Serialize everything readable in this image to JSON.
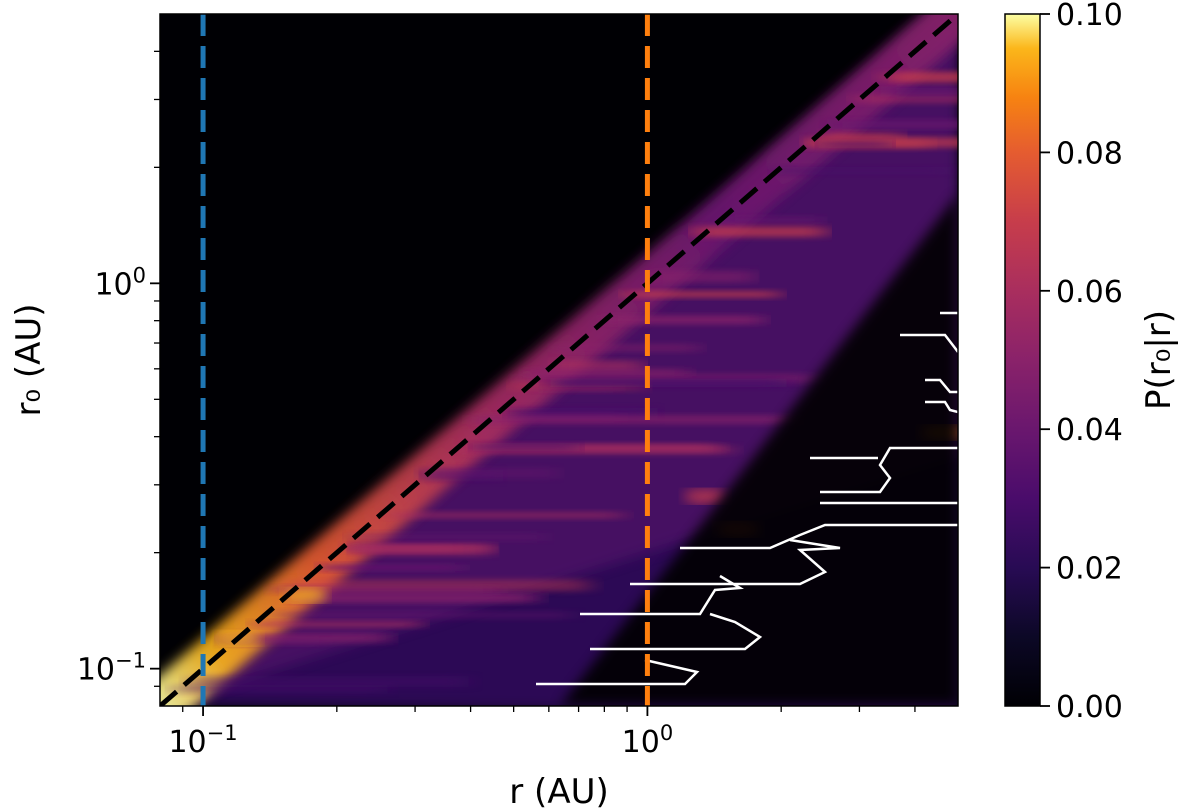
{
  "chart_data": {
    "type": "heatmap",
    "x_scale": "log",
    "y_scale": "log",
    "xlim": [
      0.08,
      5.0
    ],
    "ylim": [
      0.08,
      5.0
    ],
    "x_major_ticks": [
      0.1,
      1.0
    ],
    "y_major_ticks": [
      0.1,
      1.0
    ],
    "xlabel": "r (AU)",
    "ylabel": "r₀ (AU)",
    "colorbar": {
      "label": "P(r₀|r)",
      "colormap": "inferno",
      "vmin": 0.0,
      "vmax": 0.1,
      "ticks": [
        {
          "value": 0.0,
          "label": "0.00"
        },
        {
          "value": 0.02,
          "label": "0.02"
        },
        {
          "value": 0.04,
          "label": "0.04"
        },
        {
          "value": 0.06,
          "label": "0.06"
        },
        {
          "value": 0.08,
          "label": "0.08"
        },
        {
          "value": 0.1,
          "label": "0.10"
        }
      ]
    },
    "reference_lines": [
      {
        "kind": "diagonal",
        "description": "r0 = r",
        "color": "#000000",
        "style": "dashed"
      },
      {
        "kind": "vertical",
        "x": 0.1,
        "color": "#1f77b4",
        "style": "dashed"
      },
      {
        "kind": "vertical",
        "x": 1.0,
        "color": "#ff7f0e",
        "style": "dashed"
      }
    ],
    "contour": {
      "color": "#ffffff",
      "description": "boundary of undefined region (lower right)"
    }
  }
}
